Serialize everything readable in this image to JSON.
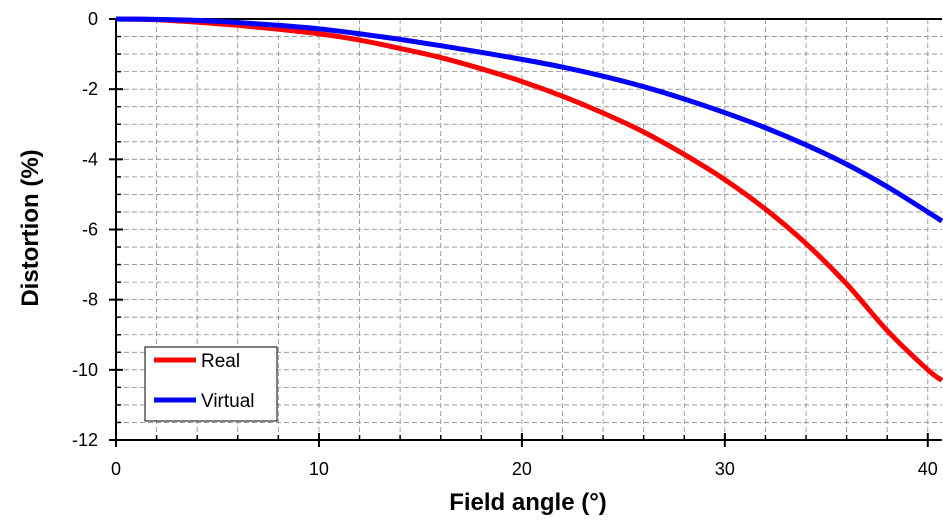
{
  "chart_data": {
    "type": "line",
    "xlabel": "Field angle (°)",
    "ylabel": "Distortion  (%)",
    "xlim": [
      0,
      40.7
    ],
    "ylim": [
      -12,
      0
    ],
    "x_ticks": [
      0,
      10,
      20,
      30,
      40
    ],
    "y_ticks": [
      0,
      -2,
      -4,
      -6,
      -8,
      -10,
      -12
    ],
    "x_tick_labels": [
      "0",
      "10",
      "20",
      "30",
      "40"
    ],
    "y_tick_labels": [
      "0",
      "-2",
      "-4",
      "-6",
      "-8",
      "-10",
      "-12"
    ],
    "x_minor_step": 2,
    "y_minor_step": 0.5,
    "grid": true,
    "legend_position": "bottom-left",
    "series": [
      {
        "name": "Real",
        "color": "#ff0000",
        "x": [
          0,
          2,
          4,
          6,
          8,
          10,
          12,
          14,
          16,
          18,
          20,
          22,
          24,
          26,
          28,
          30,
          32,
          34,
          36,
          38,
          40,
          40.7
        ],
        "y": [
          0,
          -0.02,
          -0.09,
          -0.18,
          -0.29,
          -0.42,
          -0.6,
          -0.84,
          -1.1,
          -1.42,
          -1.78,
          -2.2,
          -2.68,
          -3.22,
          -3.86,
          -4.58,
          -5.42,
          -6.4,
          -7.55,
          -8.88,
          -10.0,
          -10.3
        ]
      },
      {
        "name": "Virtual",
        "color": "#0000ff",
        "x": [
          0,
          2,
          4,
          6,
          8,
          10,
          12,
          14,
          16,
          18,
          20,
          22,
          24,
          26,
          28,
          30,
          32,
          34,
          36,
          38,
          40,
          40.7
        ],
        "y": [
          0,
          -0.01,
          -0.04,
          -0.1,
          -0.18,
          -0.28,
          -0.42,
          -0.58,
          -0.76,
          -0.95,
          -1.15,
          -1.37,
          -1.63,
          -1.93,
          -2.28,
          -2.67,
          -3.1,
          -3.59,
          -4.14,
          -4.78,
          -5.5,
          -5.76
        ]
      }
    ]
  }
}
